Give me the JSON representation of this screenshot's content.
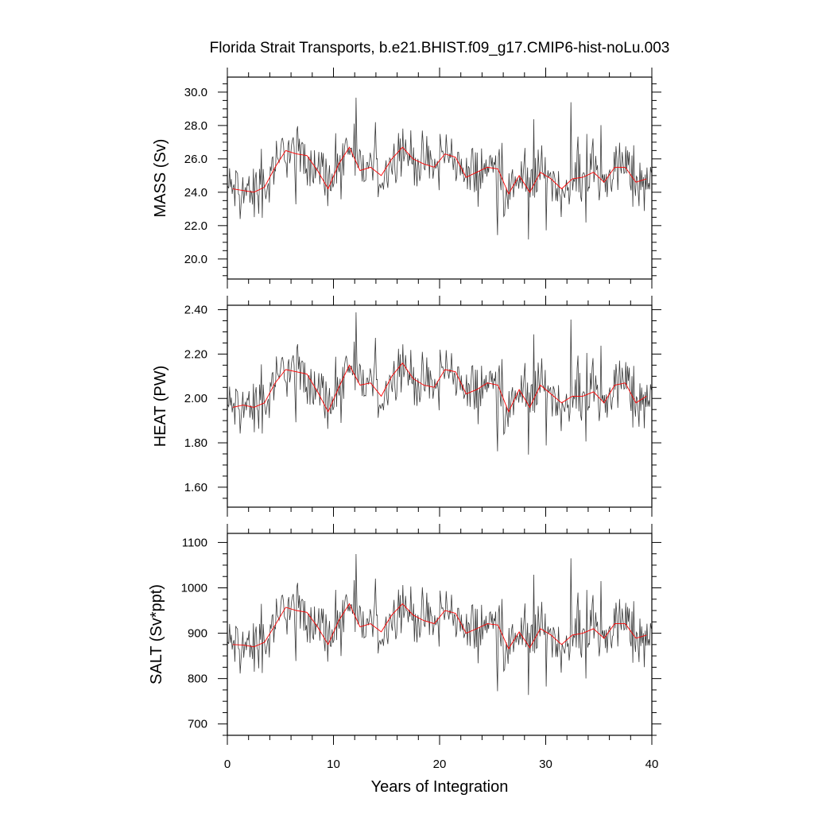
{
  "title": "Florida Strait Transports, b.e21.BHIST.f09_g17.CMIP6-hist-noLu.003",
  "colors": {
    "monthly": "#3a3a3a",
    "annual": "#ff0000",
    "axes": "#000000"
  },
  "chart_data": [
    {
      "type": "line",
      "name": "mass",
      "ylabel": "MASS (Sv)",
      "xlabel": "",
      "xlim": [
        0,
        40
      ],
      "ylim": [
        18.8,
        30.9
      ],
      "yticks": [
        20.0,
        22.0,
        24.0,
        26.0,
        28.0,
        30.0
      ],
      "ytick_labels": [
        "20.0",
        "22.0",
        "24.0",
        "26.0",
        "28.0",
        "30.0"
      ],
      "xticks": [
        0,
        10,
        20,
        30,
        40
      ],
      "xtick_labels": [
        "",
        "",
        "",
        "",
        ""
      ],
      "grid": false,
      "annual_x": [
        0.5,
        1.5,
        2.5,
        3.5,
        4.5,
        5.5,
        6.5,
        7.5,
        8.5,
        9.5,
        10.5,
        11.5,
        12.5,
        13.5,
        14.5,
        15.5,
        16.5,
        17.5,
        18.5,
        19.5,
        20.5,
        21.5,
        22.5,
        23.5,
        24.5,
        25.5,
        26.5,
        27.5,
        28.5,
        29.5,
        30.5,
        31.5,
        32.5,
        33.5,
        34.5,
        35.5,
        36.5,
        37.5,
        38.5,
        39.5
      ],
      "annual_mean": [
        24.2,
        24.1,
        24.0,
        24.3,
        25.5,
        26.5,
        26.3,
        26.2,
        25.3,
        24.2,
        25.7,
        26.7,
        25.3,
        25.5,
        25.0,
        26.0,
        26.7,
        26.0,
        25.7,
        25.5,
        26.3,
        26.1,
        24.9,
        25.2,
        25.5,
        25.4,
        23.9,
        25.0,
        24.0,
        25.2,
        24.8,
        24.2,
        24.8,
        24.9,
        25.2,
        24.6,
        25.5,
        25.5,
        24.6,
        24.8
      ]
    },
    {
      "type": "line",
      "name": "heat",
      "ylabel": "HEAT (PW)",
      "xlabel": "",
      "xlim": [
        0,
        40
      ],
      "ylim": [
        1.51,
        2.42
      ],
      "yticks": [
        1.6,
        1.8,
        2.0,
        2.2,
        2.4
      ],
      "ytick_labels": [
        "1.60",
        "1.80",
        "2.00",
        "2.20",
        "2.40"
      ],
      "xticks": [
        0,
        10,
        20,
        30,
        40
      ],
      "xtick_labels": [
        "",
        "",
        "",
        "",
        ""
      ],
      "grid": false,
      "annual_x": [
        0.5,
        1.5,
        2.5,
        3.5,
        4.5,
        5.5,
        6.5,
        7.5,
        8.5,
        9.5,
        10.5,
        11.5,
        12.5,
        13.5,
        14.5,
        15.5,
        16.5,
        17.5,
        18.5,
        19.5,
        20.5,
        21.5,
        22.5,
        23.5,
        24.5,
        25.5,
        26.5,
        27.5,
        28.5,
        29.5,
        30.5,
        31.5,
        32.5,
        33.5,
        34.5,
        35.5,
        36.5,
        37.5,
        38.5,
        39.5
      ],
      "annual_mean": [
        1.96,
        1.97,
        1.96,
        1.98,
        2.07,
        2.13,
        2.12,
        2.11,
        2.03,
        1.94,
        2.05,
        2.15,
        2.06,
        2.07,
        2.01,
        2.1,
        2.16,
        2.09,
        2.06,
        2.05,
        2.13,
        2.12,
        2.02,
        2.04,
        2.07,
        2.06,
        1.94,
        2.04,
        1.96,
        2.06,
        2.02,
        1.98,
        2.01,
        2.01,
        2.03,
        1.98,
        2.06,
        2.07,
        1.98,
        2.01
      ]
    },
    {
      "type": "line",
      "name": "salt",
      "ylabel": "SALT (Sv*ppt)",
      "xlabel": "Years of Integration",
      "xlim": [
        0,
        40
      ],
      "ylim": [
        675,
        1120
      ],
      "yticks": [
        700,
        800,
        900,
        1000,
        1100
      ],
      "ytick_labels": [
        "700",
        "800",
        "900",
        "1000",
        "1100"
      ],
      "xticks": [
        0,
        10,
        20,
        30,
        40
      ],
      "xtick_labels": [
        "0",
        "10",
        "20",
        "30",
        "40"
      ],
      "grid": false,
      "annual_x": [
        0.5,
        1.5,
        2.5,
        3.5,
        4.5,
        5.5,
        6.5,
        7.5,
        8.5,
        9.5,
        10.5,
        11.5,
        12.5,
        13.5,
        14.5,
        15.5,
        16.5,
        17.5,
        18.5,
        19.5,
        20.5,
        21.5,
        22.5,
        23.5,
        24.5,
        25.5,
        26.5,
        27.5,
        28.5,
        29.5,
        30.5,
        31.5,
        32.5,
        33.5,
        34.5,
        35.5,
        36.5,
        37.5,
        38.5,
        39.5
      ],
      "annual_mean": [
        875,
        874,
        870,
        880,
        918,
        957,
        950,
        946,
        914,
        875,
        928,
        965,
        914,
        921,
        903,
        940,
        965,
        940,
        928,
        921,
        950,
        944,
        900,
        910,
        921,
        918,
        866,
        903,
        868,
        910,
        896,
        875,
        896,
        900,
        910,
        889,
        921,
        921,
        889,
        896
      ]
    }
  ]
}
